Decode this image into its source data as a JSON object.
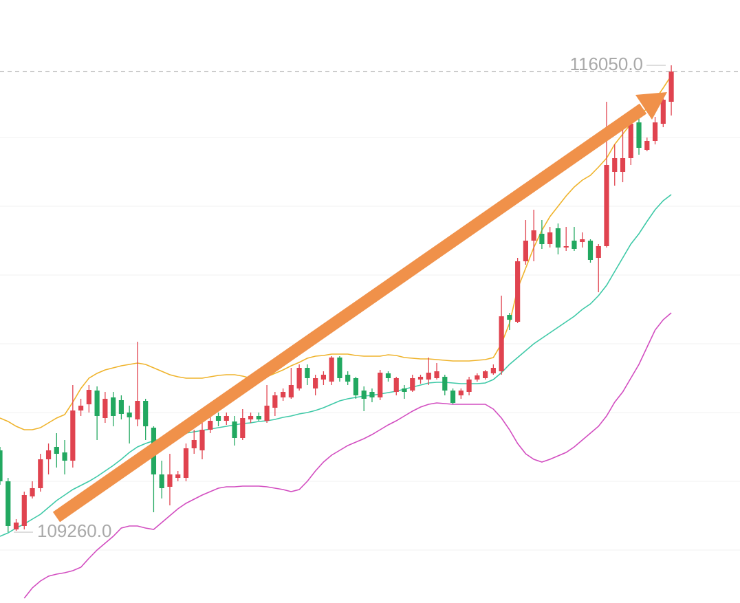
{
  "chart_data": {
    "type": "candlestick",
    "ylim": [
      108230,
      117000
    ],
    "grid_lines": [
      109000,
      110000,
      111000,
      112000,
      113000,
      114000,
      115000
    ],
    "up_color": "#e0434f",
    "down_color": "#22a860",
    "open": [
      110450,
      110000,
      109300,
      109350,
      109780,
      109900,
      110320,
      110500,
      110420,
      110300,
      111030,
      111120,
      111320,
      110920,
      111220,
      111180,
      111000,
      110900,
      111170,
      110780,
      110100,
      109920,
      110050,
      110050,
      110480,
      110450,
      110750,
      110950,
      110880,
      110870,
      110630,
      110900,
      110950,
      110880,
      111070,
      111220,
      111220,
      111350,
      111650,
      111350,
      111480,
      111450,
      111800,
      111550,
      111500,
      111320,
      111300,
      111220,
      111570,
      111300,
      111350,
      111320,
      111480,
      111480,
      111500,
      111520,
      111320,
      111250,
      111300,
      111480,
      111500,
      111570,
      111600,
      112420,
      112320,
      113200,
      113500,
      113600,
      113450,
      113680,
      113400,
      113500,
      113480,
      113500,
      113250,
      113420,
      114500,
      114500,
      114700,
      115220,
      114820,
      114950,
      115200,
      115520
    ],
    "high": [
      110500,
      110050,
      109450,
      109850,
      110000,
      110400,
      110550,
      110700,
      110600,
      111400,
      111200,
      111400,
      111380,
      111300,
      111300,
      111250,
      111100,
      112030,
      111200,
      110800,
      110300,
      110400,
      110150,
      110550,
      110750,
      110850,
      110950,
      111000,
      111000,
      110950,
      111050,
      111000,
      111000,
      111400,
      111300,
      111350,
      111650,
      111700,
      111700,
      111550,
      111600,
      111820,
      111820,
      111600,
      111520,
      111380,
      111350,
      111620,
      111600,
      111520,
      111400,
      111550,
      111550,
      111800,
      111720,
      111550,
      111350,
      111350,
      111520,
      111570,
      111620,
      111700,
      112700,
      112450,
      113250,
      113800,
      113950,
      113800,
      113700,
      113750,
      113700,
      113700,
      113620,
      113520,
      113450,
      115520,
      114900,
      115150,
      115250,
      115300,
      115000,
      115300,
      115600,
      116050
    ],
    "low": [
      109950,
      109260,
      109280,
      109300,
      109750,
      109850,
      110100,
      110200,
      110100,
      110200,
      110950,
      111000,
      110600,
      110850,
      110800,
      110900,
      110550,
      110800,
      110600,
      109550,
      109750,
      109650,
      110000,
      110000,
      110400,
      110320,
      110700,
      110800,
      110820,
      110520,
      110600,
      110850,
      110880,
      110850,
      110950,
      111170,
      111200,
      111320,
      111400,
      111250,
      111400,
      111400,
      111450,
      111400,
      111200,
      111020,
      111150,
      111180,
      111450,
      111250,
      111200,
      111300,
      111420,
      111400,
      111480,
      111250,
      111120,
      111200,
      111250,
      111450,
      111480,
      111550,
      111550,
      112200,
      112300,
      113150,
      113200,
      113380,
      113400,
      113300,
      113350,
      113350,
      113400,
      113180,
      112750,
      113400,
      114300,
      114350,
      114600,
      114750,
      114800,
      114900,
      115150,
      115320
    ],
    "close": [
      110000,
      109350,
      109400,
      109800,
      109900,
      110320,
      110450,
      110400,
      110300,
      111030,
      111100,
      111330,
      110950,
      111200,
      110950,
      110980,
      110930,
      111170,
      110800,
      110100,
      109900,
      110100,
      110100,
      110480,
      110600,
      110750,
      110880,
      110880,
      110950,
      110630,
      110920,
      110950,
      110900,
      111100,
      111250,
      111300,
      111400,
      111650,
      111500,
      111500,
      111550,
      111800,
      111500,
      111450,
      111250,
      111200,
      111220,
      111580,
      111500,
      111500,
      111300,
      111500,
      111520,
      111580,
      111600,
      111320,
      111140,
      111320,
      111480,
      111540,
      111600,
      111650,
      112400,
      112350,
      113200,
      113500,
      113650,
      113450,
      113620,
      113400,
      113420,
      113380,
      113520,
      113220,
      113420,
      114600,
      114700,
      114700,
      115200,
      114850,
      114950,
      115220,
      115550,
      115960
    ],
    "bands": [
      {
        "color": "#efb32b",
        "values": [
          110920,
          110870,
          110800,
          110750,
          110750,
          110780,
          110850,
          110920,
          110970,
          111150,
          111350,
          111500,
          111570,
          111620,
          111650,
          111680,
          111700,
          111720,
          111700,
          111650,
          111600,
          111550,
          111520,
          111500,
          111500,
          111500,
          111520,
          111540,
          111550,
          111550,
          111530,
          111500,
          111490,
          111520,
          111570,
          111620,
          111680,
          111730,
          111790,
          111820,
          111830,
          111850,
          111850,
          111850,
          111830,
          111820,
          111820,
          111820,
          111840,
          111830,
          111800,
          111790,
          111780,
          111780,
          111770,
          111760,
          111750,
          111750,
          111750,
          111760,
          111770,
          111800,
          112000,
          112300,
          112800,
          113100,
          113400,
          113650,
          113850,
          114000,
          114150,
          114280,
          114380,
          114450,
          114570,
          114700,
          114900,
          115050,
          115200,
          115320,
          115420,
          115550,
          115720,
          115900
        ]
      },
      {
        "color": "#3ec9a7",
        "values": [
          109200,
          109250,
          109320,
          109380,
          109450,
          109520,
          109620,
          109720,
          109800,
          109880,
          109940,
          110000,
          110070,
          110150,
          110230,
          110320,
          110420,
          110500,
          110550,
          110590,
          110620,
          110650,
          110680,
          110700,
          110720,
          110740,
          110760,
          110780,
          110800,
          110820,
          110840,
          110850,
          110870,
          110880,
          110900,
          110930,
          110950,
          110980,
          111000,
          111030,
          111070,
          111120,
          111170,
          111200,
          111220,
          111240,
          111250,
          111270,
          111290,
          111310,
          111340,
          111370,
          111400,
          111430,
          111440,
          111440,
          111430,
          111420,
          111420,
          111420,
          111430,
          111480,
          111580,
          111700,
          111800,
          111900,
          112000,
          112080,
          112160,
          112240,
          112320,
          112400,
          112500,
          112580,
          112700,
          112850,
          113050,
          113250,
          113450,
          113600,
          113780,
          113950,
          114080,
          114170
        ]
      },
      {
        "color": "#d24dc0",
        "values": [
          null,
          null,
          null,
          108300,
          108450,
          108550,
          108620,
          108650,
          108670,
          108700,
          108750,
          108880,
          109000,
          109100,
          109200,
          109320,
          109350,
          109350,
          109320,
          109300,
          109400,
          109500,
          109600,
          109680,
          109740,
          109800,
          109850,
          109900,
          109920,
          109920,
          109930,
          109930,
          109930,
          109920,
          109900,
          109880,
          109850,
          109880,
          110000,
          110150,
          110280,
          110380,
          110450,
          110520,
          110570,
          110620,
          110680,
          110750,
          110820,
          110880,
          110950,
          111020,
          111080,
          111120,
          111140,
          111130,
          111120,
          111120,
          111120,
          111120,
          111120,
          111050,
          110920,
          110750,
          110550,
          110400,
          110320,
          110280,
          110320,
          110370,
          110420,
          110500,
          110600,
          110700,
          110800,
          110950,
          111150,
          111300,
          111500,
          111700,
          111950,
          112200,
          112350,
          112450
        ]
      }
    ],
    "high_label": {
      "value": 116050,
      "label": "116050.0"
    },
    "low_label": {
      "value": 109260,
      "label": "109260.0"
    }
  }
}
